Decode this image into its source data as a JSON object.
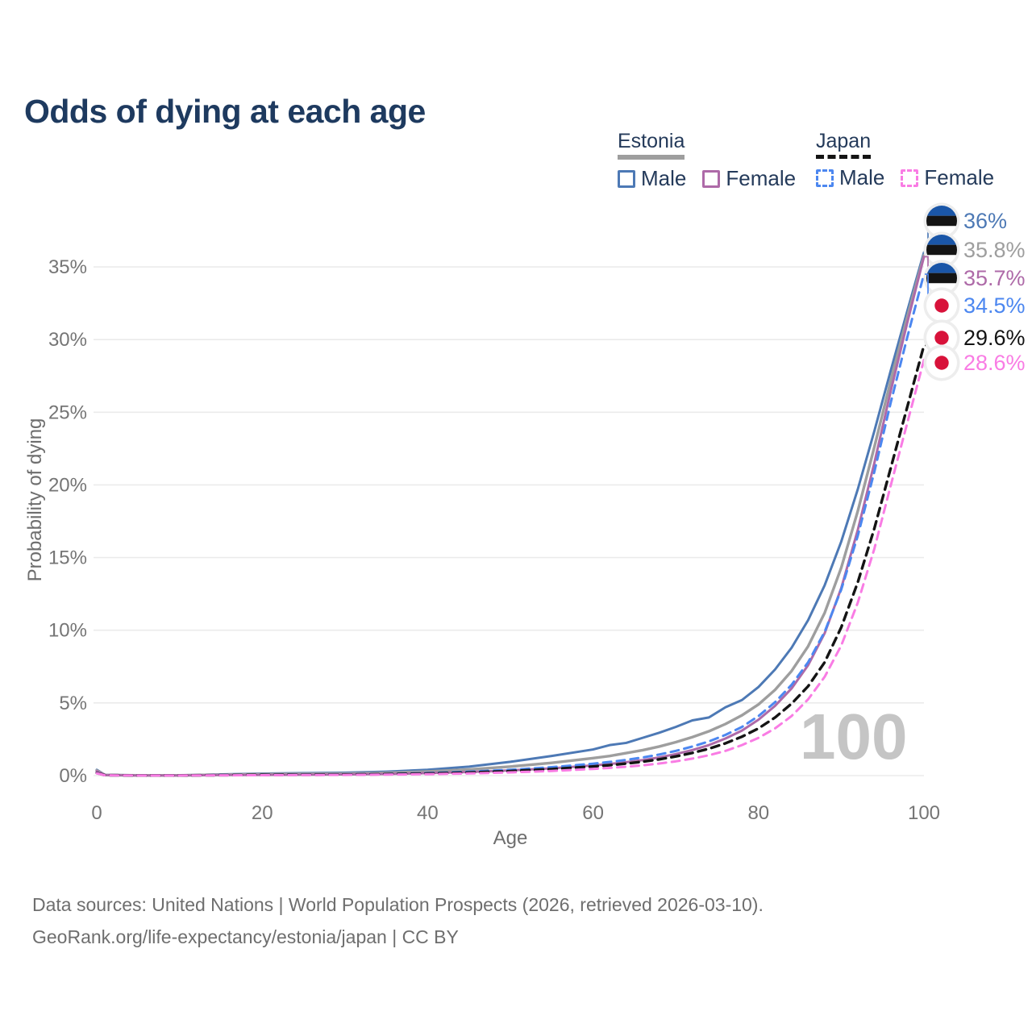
{
  "title": "Odds of dying at each age",
  "watermark": "100",
  "legend": {
    "estonia": {
      "label": "Estonia",
      "line_color": "#9e9e9e",
      "line_style": "solid",
      "male_label": "Male",
      "female_label": "Female",
      "male_color": "#4d79b5",
      "female_color": "#ae6aa8"
    },
    "japan": {
      "label": "Japan",
      "line_color": "#141414",
      "line_style": "dashed",
      "male_label": "Male",
      "female_label": "Female",
      "male_color": "#4c87f0",
      "female_color": "#f97ce4"
    }
  },
  "chart_data": {
    "type": "line",
    "title": "Odds of dying at each age",
    "xlabel": "Age",
    "ylabel": "Probability of dying",
    "xlim": [
      0,
      100
    ],
    "ylim": [
      0,
      36
    ],
    "x_ticks": [
      0,
      20,
      40,
      60,
      80,
      100
    ],
    "y_ticks": [
      0,
      5,
      10,
      15,
      20,
      25,
      30,
      35
    ],
    "y_tick_suffix": "%",
    "grid": "horizontal",
    "legend_position": "top-right",
    "x": [
      0,
      1,
      5,
      10,
      15,
      20,
      25,
      30,
      35,
      40,
      45,
      50,
      55,
      60,
      62,
      64,
      66,
      68,
      70,
      72,
      74,
      76,
      78,
      80,
      82,
      84,
      86,
      88,
      90,
      92,
      94,
      96,
      98,
      100
    ],
    "series": [
      {
        "name": "Estonia Male",
        "color": "#4d79b5",
        "dash": "solid",
        "flag": "estonia",
        "end_label": "36%",
        "values": [
          0.4,
          0.05,
          0.02,
          0.02,
          0.08,
          0.14,
          0.17,
          0.2,
          0.27,
          0.4,
          0.62,
          0.95,
          1.35,
          1.8,
          2.1,
          2.25,
          2.6,
          2.95,
          3.35,
          3.8,
          4.0,
          4.7,
          5.2,
          6.1,
          7.3,
          8.8,
          10.7,
          13.1,
          16.1,
          19.7,
          23.7,
          27.9,
          32.0,
          36.0
        ]
      },
      {
        "name": "Estonia Both sexes",
        "color": "#9e9e9e",
        "dash": "solid",
        "flag": "estonia",
        "end_label": "35.8%",
        "values": [
          0.35,
          0.04,
          0.02,
          0.02,
          0.06,
          0.1,
          0.12,
          0.14,
          0.19,
          0.28,
          0.42,
          0.62,
          0.88,
          1.2,
          1.35,
          1.55,
          1.75,
          2.0,
          2.3,
          2.65,
          3.05,
          3.55,
          4.15,
          4.9,
          5.9,
          7.2,
          8.9,
          11.2,
          14.3,
          18.2,
          22.6,
          27.2,
          31.6,
          35.8
        ]
      },
      {
        "name": "Estonia Female",
        "color": "#ae6aa8",
        "dash": "solid",
        "flag": "estonia",
        "end_label": "35.7%",
        "values": [
          0.3,
          0.04,
          0.01,
          0.01,
          0.04,
          0.05,
          0.06,
          0.08,
          0.11,
          0.17,
          0.25,
          0.36,
          0.5,
          0.7,
          0.8,
          0.92,
          1.07,
          1.25,
          1.48,
          1.76,
          2.1,
          2.55,
          3.1,
          3.85,
          4.8,
          6.0,
          7.6,
          9.8,
          12.9,
          16.9,
          21.5,
          26.5,
          31.2,
          35.7
        ]
      },
      {
        "name": "Japan Male",
        "color": "#4c87f0",
        "dash": "dashed",
        "flag": "japan",
        "end_label": "34.5%",
        "values": [
          0.2,
          0.03,
          0.01,
          0.01,
          0.04,
          0.06,
          0.07,
          0.09,
          0.12,
          0.18,
          0.27,
          0.4,
          0.58,
          0.82,
          0.94,
          1.08,
          1.25,
          1.45,
          1.7,
          2.0,
          2.35,
          2.8,
          3.35,
          4.1,
          5.05,
          6.25,
          7.8,
          9.9,
          12.8,
          16.5,
          20.9,
          25.7,
          30.2,
          34.5
        ]
      },
      {
        "name": "Japan Both sexes",
        "color": "#141414",
        "dash": "dashed",
        "flag": "japan",
        "end_label": "29.6%",
        "values": [
          0.18,
          0.03,
          0.01,
          0.01,
          0.03,
          0.05,
          0.06,
          0.07,
          0.1,
          0.14,
          0.21,
          0.31,
          0.45,
          0.63,
          0.72,
          0.83,
          0.96,
          1.12,
          1.32,
          1.56,
          1.85,
          2.22,
          2.68,
          3.25,
          4.0,
          4.95,
          6.15,
          7.8,
          10.2,
          13.3,
          17.0,
          21.2,
          25.4,
          29.6
        ]
      },
      {
        "name": "Japan Female",
        "color": "#f97ce4",
        "dash": "dashed",
        "flag": "japan",
        "end_label": "28.6%",
        "values": [
          0.16,
          0.02,
          0.01,
          0.01,
          0.02,
          0.03,
          0.04,
          0.05,
          0.07,
          0.1,
          0.15,
          0.22,
          0.32,
          0.46,
          0.53,
          0.61,
          0.71,
          0.83,
          0.98,
          1.17,
          1.4,
          1.7,
          2.1,
          2.6,
          3.25,
          4.1,
          5.25,
          6.8,
          8.95,
          11.9,
          15.6,
          20.0,
          24.3,
          28.6
        ]
      }
    ]
  },
  "footer": {
    "line1": "Data sources: United Nations | World Population Prospects (2026, retrieved 2026-03-10).",
    "line2": "GeoRank.org/life-expectancy/estonia/japan | CC BY"
  },
  "colors": {
    "title": "#1e3a5f",
    "axis_text": "#757575",
    "axis_title": "#6e6e6e",
    "grid": "#ebebeb",
    "watermark": "#c5c5c5",
    "badge_bg": "#ededed",
    "estonia_flag_blue": "#1a56a8",
    "estonia_flag_black": "#141414",
    "japan_flag_red": "#d8123a"
  }
}
